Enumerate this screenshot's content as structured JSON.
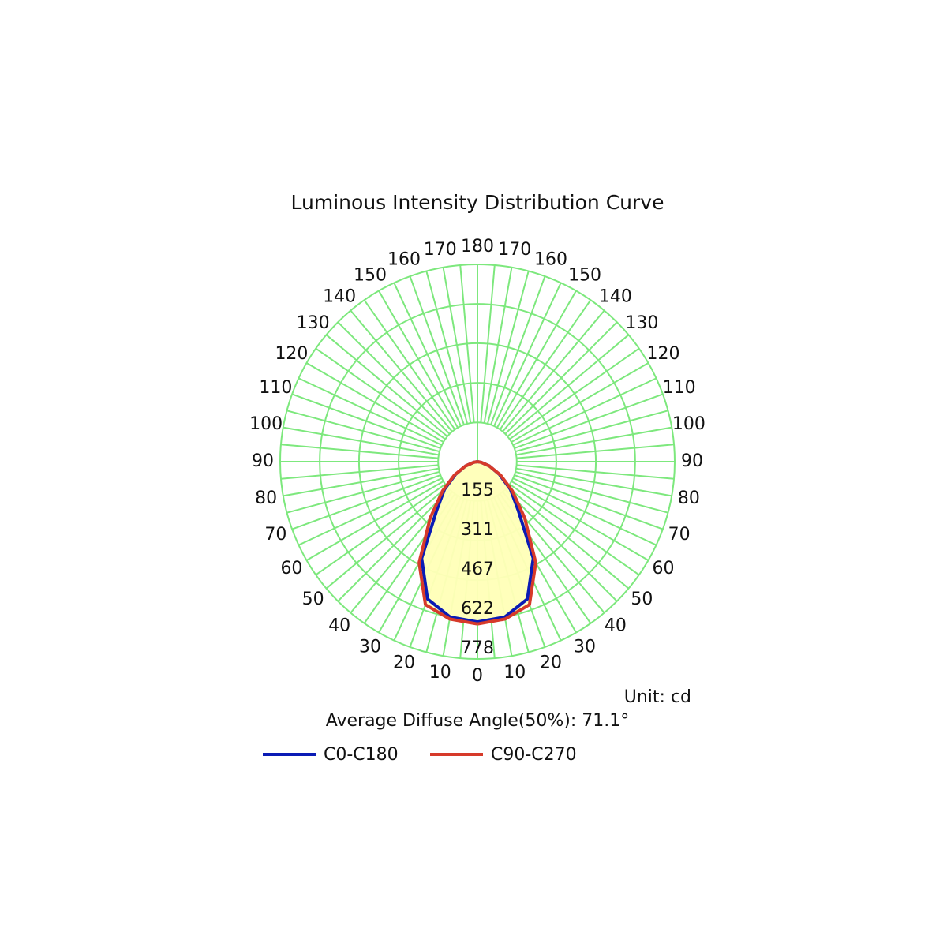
{
  "chart_data": {
    "type": "polar",
    "title": "Luminous Intensity Distribution Curve",
    "unit_label": "Unit: cd",
    "note": "Average Diffuse Angle(50%): 71.1°",
    "angle_ticks": [
      0,
      10,
      20,
      30,
      40,
      50,
      60,
      70,
      80,
      90,
      100,
      110,
      120,
      130,
      140,
      150,
      160,
      170,
      180
    ],
    "rlim": [
      0,
      778
    ],
    "rticks": [
      155,
      311,
      467,
      622,
      778
    ],
    "grid": true,
    "grid_color": "#7de87d",
    "fill_color": "#ffffb8",
    "angles": [
      0,
      10,
      20,
      30,
      40,
      50,
      60,
      70,
      80,
      90
    ],
    "series": [
      {
        "name": "C0-C180",
        "color": "#0a1bb5",
        "values": [
          632,
          622,
          576,
          440,
          250,
          170,
          100,
          50,
          15,
          0
        ]
      },
      {
        "name": "C90-C270",
        "color": "#d63a2a",
        "values": [
          640,
          630,
          600,
          460,
          290,
          180,
          105,
          50,
          15,
          0
        ]
      }
    ]
  }
}
